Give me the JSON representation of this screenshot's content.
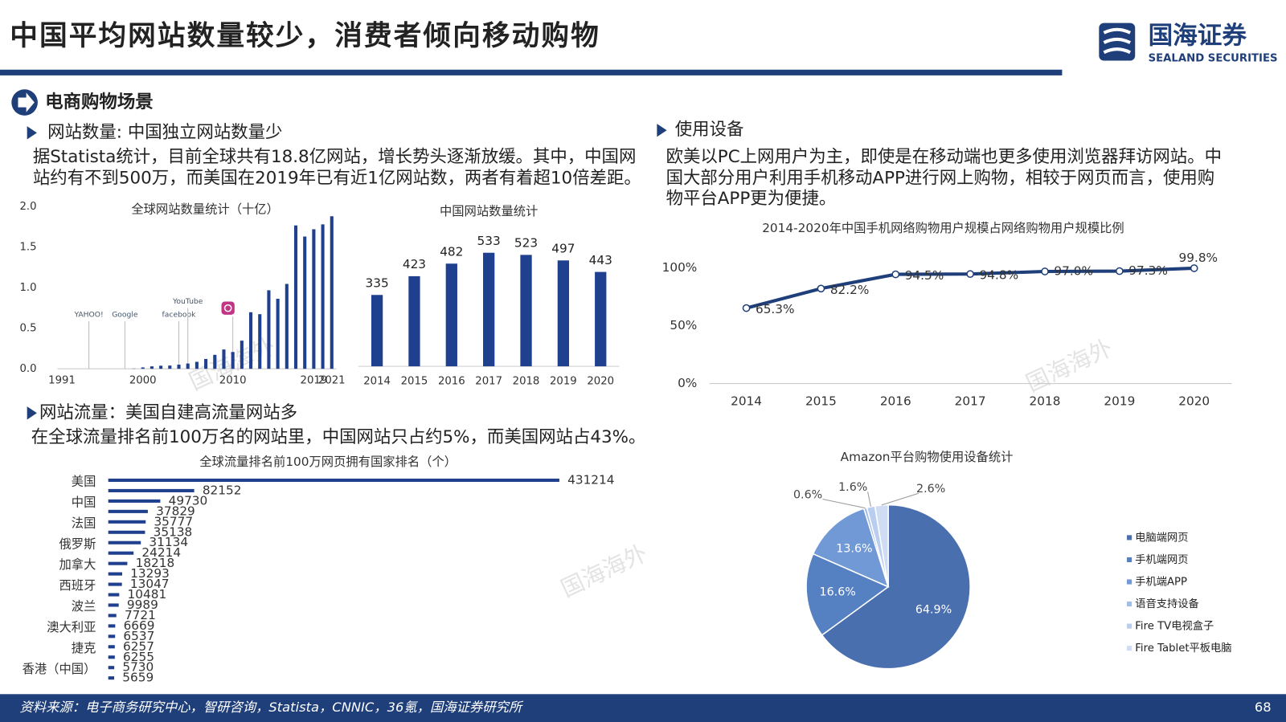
{
  "header": {
    "title": "中国平均网站数量较少，消费者倾向移动购物",
    "logo_cn": "国海证券",
    "logo_en": "SEALAND SECURITIES"
  },
  "section": "电商购物场景",
  "left": {
    "heading1": "网站数量: 中国独立网站数量少",
    "text1": [
      "据Statista统计，目前全球共有18.8亿网站，增长势头逐渐放缓。其中，中国网",
      "站约有不到500万，而美国在2019年已有近1亿网站数，两者有着超10倍差距。"
    ],
    "heading2": "网站流量：美国自建高流量网站多",
    "text2": [
      "在全球流量排名前100万名的网站里，中国网站只占约5%，而美国网站占43%。"
    ]
  },
  "right": {
    "heading": "使用设备",
    "text": [
      "欧美以PC上网用户为主，即使是在移动端也更多使用浏览器拜访网站。中",
      "国大部分用户利用手机移动APP进行网上购物，相较于网页而言，使用购",
      "物平台APP更为便捷。"
    ]
  },
  "watermark": "国海海外",
  "footer": {
    "source": "资料来源：电子商务研究中心，智研咨询，Statista，CNNIC，36氪，国海证券研究所",
    "page": "68"
  },
  "chart_data": [
    {
      "type": "bar",
      "title": "全球网站数量统计（十亿）",
      "categories": [
        "1991",
        null,
        null,
        null,
        null,
        null,
        null,
        null,
        null,
        "2000",
        null,
        null,
        null,
        null,
        null,
        null,
        null,
        null,
        null,
        "2010",
        null,
        null,
        null,
        null,
        null,
        null,
        null,
        null,
        "2019",
        null,
        "2021"
      ],
      "values": [
        0,
        0,
        0,
        0,
        0,
        0,
        0,
        0,
        0.003,
        0.017,
        0.03,
        0.038,
        0.04,
        0.051,
        0.065,
        0.086,
        0.121,
        0.172,
        0.238,
        0.207,
        0.347,
        0.697,
        0.673,
        0.968,
        0.863,
        1.046,
        1.767,
        1.63,
        1.72,
        1.78,
        1.88
      ],
      "color": "#1f3f8f",
      "ylim": [
        0,
        2
      ],
      "yticks": [
        {
          "value": 0,
          "label": "0.0"
        },
        {
          "value": 0.5,
          "label": "0.5"
        },
        {
          "value": 1,
          "label": "1.0"
        },
        {
          "value": 1.5,
          "label": "1.5"
        },
        {
          "value": 2,
          "label": "2.0"
        }
      ],
      "annotations": [
        "YAHOO!",
        "Google",
        "facebook",
        "YouTube"
      ]
    },
    {
      "type": "bar",
      "title": "中国网站数量统计",
      "categories": [
        "2014",
        "2015",
        "2016",
        "2017",
        "2018",
        "2019",
        "2020"
      ],
      "values": [
        335,
        423,
        482,
        533,
        523,
        497,
        443
      ],
      "color": "#1f3f8f",
      "ylim": [
        0,
        600
      ]
    },
    {
      "type": "line",
      "title": "2014-2020年中国手机网络购物用户规模占网络购物用户规模比例",
      "categories": [
        "2014",
        "2015",
        "2016",
        "2017",
        "2018",
        "2019",
        "2020"
      ],
      "values": [
        65.3,
        82.2,
        94.5,
        94.8,
        97.0,
        97.3,
        99.8
      ],
      "value_labels": [
        "65.3%",
        "82.2%",
        "94.5%",
        "94.8%",
        "97.0%",
        "97.3%",
        "99.8%"
      ],
      "color": "#1f3f7a",
      "ylim": [
        0,
        100
      ],
      "yticks": [
        {
          "value": 0,
          "label": "0%"
        },
        {
          "value": 50,
          "label": "50%"
        },
        {
          "value": 100,
          "label": "100%"
        }
      ]
    },
    {
      "type": "hbar",
      "title": "全球流量排名前100万网页拥有国家排名（个）",
      "categories": [
        "美国",
        null,
        "中国",
        null,
        "法国",
        null,
        "俄罗斯",
        null,
        "加拿大",
        null,
        "西班牙",
        null,
        "波兰",
        null,
        "澳大利亚",
        null,
        "捷克",
        null,
        "香港（中国）",
        null
      ],
      "values": [
        431214,
        82152,
        49730,
        37829,
        35777,
        35138,
        31134,
        24214,
        18218,
        13293,
        13047,
        10481,
        9989,
        7721,
        6669,
        6537,
        6257,
        6255,
        5730,
        5659
      ],
      "color": "#1f3f8f",
      "xlim": [
        0,
        431214
      ]
    },
    {
      "type": "pie",
      "title": "Amazon平台购物使用设备统计",
      "categories": [
        "电脑端网页",
        "手机端网页",
        "手机端APP",
        "语音支持设备",
        "Fire TV电视盒子",
        "Fire Tablet平板电脑"
      ],
      "values": [
        64.9,
        16.6,
        13.6,
        0.6,
        1.6,
        2.6
      ],
      "value_labels": [
        "64.9%",
        "16.6%",
        "13.6%",
        "0.6%",
        "1.6%",
        "2.6%"
      ],
      "colors": [
        "#4a6fae",
        "#5580c2",
        "#7099d6",
        "#a3bde6",
        "#b9cdee",
        "#cfdcf3"
      ]
    }
  ]
}
